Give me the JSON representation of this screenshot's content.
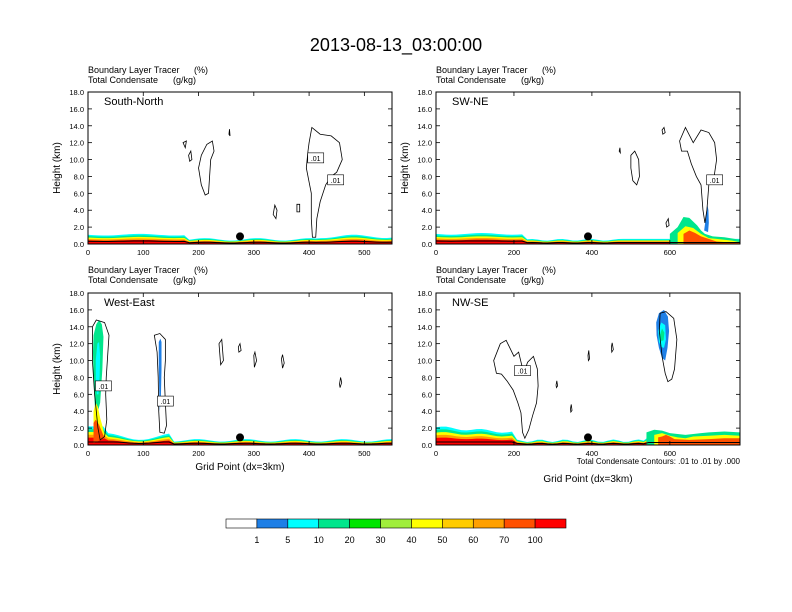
{
  "title": "2013-08-13_03:00:00",
  "colorbar": {
    "labels": [
      "1",
      "5",
      "10",
      "20",
      "30",
      "40",
      "50",
      "60",
      "70",
      "100"
    ],
    "colors": [
      "#ffffff",
      "#1e7fe6",
      "#00ffff",
      "#00e68c",
      "#00e600",
      "#a0ee3c",
      "#ffff00",
      "#ffcc00",
      "#ffa000",
      "#ff5000",
      "#ff0000"
    ]
  },
  "footer_note": "Total Condensate Contours: .01 to .01 by .000",
  "chart_data": [
    {
      "type": "heatmap",
      "name": "South-North",
      "subtitle_left": "Boundary Layer Tracer",
      "subtitle_left_unit": "(%)",
      "subtitle_left2": "Total Condensate",
      "subtitle_left2_unit": "(g/kg)",
      "panel_label": "South-North",
      "ylabel": "Height (km)",
      "xlabel": "",
      "xlim": [
        0,
        550
      ],
      "ylim": [
        0,
        18
      ],
      "x_ticks": [
        0,
        100,
        200,
        300,
        400,
        500
      ],
      "y_ticks": [
        "0.0",
        "2.0",
        "4.0",
        "6.0",
        "8.0",
        "10.0",
        "12.0",
        "14.0",
        "16.0",
        "18.0"
      ],
      "contour_labels": [
        ".01",
        ".01"
      ],
      "marker_x": 275
    },
    {
      "type": "heatmap",
      "name": "SW-NE",
      "subtitle_left": "Boundary Layer Tracer",
      "subtitle_left_unit": "(%)",
      "subtitle_left2": "Total Condensate",
      "subtitle_left2_unit": "(g/kg)",
      "panel_label": "SW-NE",
      "ylabel": "Height (km)",
      "xlabel": "",
      "xlim": [
        0,
        780
      ],
      "ylim": [
        0,
        18
      ],
      "x_ticks": [
        0,
        200,
        400,
        600
      ],
      "y_ticks": [
        "0.0",
        "2.0",
        "4.0",
        "6.0",
        "8.0",
        "10.0",
        "12.0",
        "14.0",
        "16.0",
        "18.0"
      ],
      "contour_labels": [
        ".01"
      ],
      "marker_x": 390
    },
    {
      "type": "heatmap",
      "name": "West-East",
      "subtitle_left": "Boundary Layer Tracer",
      "subtitle_left_unit": "(%)",
      "subtitle_left2": "Total Condensate",
      "subtitle_left2_unit": "(g/kg)",
      "panel_label": "West-East",
      "ylabel": "Height (km)",
      "xlabel": "Grid Point (dx=3km)",
      "xlim": [
        0,
        550
      ],
      "ylim": [
        0,
        18
      ],
      "x_ticks": [
        0,
        100,
        200,
        300,
        400,
        500
      ],
      "y_ticks": [
        "0.0",
        "2.0",
        "4.0",
        "6.0",
        "8.0",
        "10.0",
        "12.0",
        "14.0",
        "16.0",
        "18.0"
      ],
      "contour_labels": [
        ".01",
        ".01"
      ],
      "marker_x": 275
    },
    {
      "type": "heatmap",
      "name": "NW-SE",
      "subtitle_left": "Boundary Layer Tracer",
      "subtitle_left_unit": "(%)",
      "subtitle_left2": "Total Condensate",
      "subtitle_left2_unit": "(g/kg)",
      "panel_label": "NW-SE",
      "ylabel": "",
      "xlabel": "Grid Point (dx=3km)",
      "xlim": [
        0,
        780
      ],
      "ylim": [
        0,
        18
      ],
      "x_ticks": [
        0,
        200,
        400,
        600
      ],
      "y_ticks": [
        "0.0",
        "2.0",
        "4.0",
        "6.0",
        "8.0",
        "10.0",
        "12.0",
        "14.0",
        "16.0",
        "18.0"
      ],
      "contour_labels": [
        ".01"
      ],
      "marker_x": 390
    }
  ]
}
